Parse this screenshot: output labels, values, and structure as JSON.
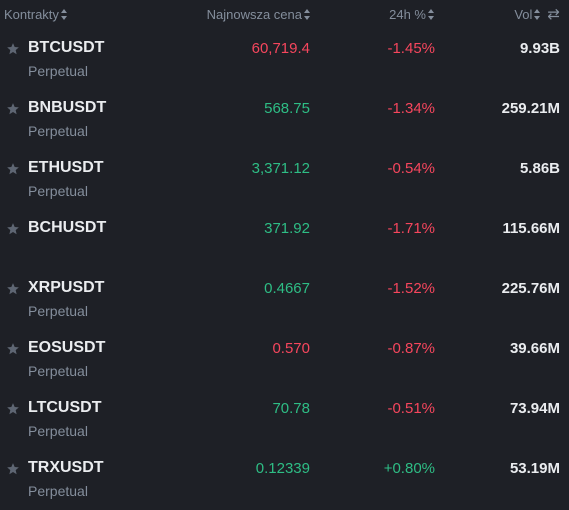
{
  "colors": {
    "background": "#1e2026",
    "up": "#2ebd85",
    "down": "#f6465d",
    "muted": "#848e9c",
    "text": "#eaecef"
  },
  "header": {
    "contract_label": "Kontrakty",
    "price_label": "Najnowsza cena",
    "change_label": "24h %",
    "vol_label": "Vol"
  },
  "rows": [
    {
      "symbol": "BTCUSDT",
      "type": "Perpetual",
      "price": "60,719.4",
      "price_dir": "down",
      "change": "-1.45%",
      "change_dir": "down",
      "vol": "9.93B"
    },
    {
      "symbol": "BNBUSDT",
      "type": "Perpetual",
      "price": "568.75",
      "price_dir": "up",
      "change": "-1.34%",
      "change_dir": "down",
      "vol": "259.21M"
    },
    {
      "symbol": "ETHUSDT",
      "type": "Perpetual",
      "price": "3,371.12",
      "price_dir": "up",
      "change": "-0.54%",
      "change_dir": "down",
      "vol": "5.86B"
    },
    {
      "symbol": "BCHUSDT",
      "type": "",
      "price": "371.92",
      "price_dir": "up",
      "change": "-1.71%",
      "change_dir": "down",
      "vol": "115.66M"
    },
    {
      "symbol": "XRPUSDT",
      "type": "Perpetual",
      "price": "0.4667",
      "price_dir": "up",
      "change": "-1.52%",
      "change_dir": "down",
      "vol": "225.76M"
    },
    {
      "symbol": "EOSUSDT",
      "type": "Perpetual",
      "price": "0.570",
      "price_dir": "down",
      "change": "-0.87%",
      "change_dir": "down",
      "vol": "39.66M"
    },
    {
      "symbol": "LTCUSDT",
      "type": "Perpetual",
      "price": "70.78",
      "price_dir": "up",
      "change": "-0.51%",
      "change_dir": "down",
      "vol": "73.94M"
    },
    {
      "symbol": "TRXUSDT",
      "type": "Perpetual",
      "price": "0.12339",
      "price_dir": "up",
      "change": "+0.80%",
      "change_dir": "up",
      "vol": "53.19M"
    }
  ]
}
